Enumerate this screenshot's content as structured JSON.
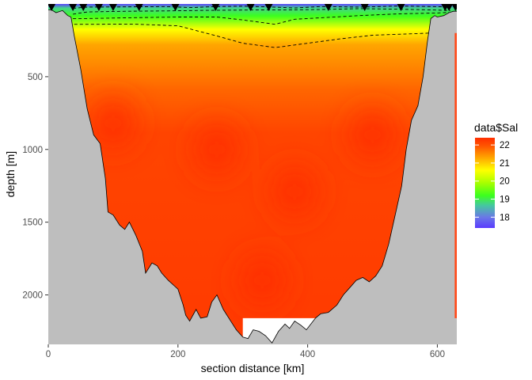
{
  "chart_data": {
    "type": "heatmap",
    "title": "",
    "xlabel": "section distance [km]",
    "ylabel": "depth [m]",
    "xlim": [
      0,
      630
    ],
    "ylim": [
      2340,
      0
    ],
    "y_reversed": true,
    "grid": false,
    "x_ticks": [
      0,
      200,
      400,
      600
    ],
    "y_ticks": [
      500,
      1000,
      1500,
      2000
    ],
    "legend": {
      "title": "data$Sal",
      "placement": "right",
      "ticks": [
        18,
        19,
        20,
        21,
        22
      ],
      "range": [
        17.4,
        22.4
      ]
    },
    "colors": {
      "panel_background": "#bebebe",
      "colorscale": [
        "#5a3cff",
        "#45c8a0",
        "#3cff1e",
        "#ffff00",
        "#ffa500",
        "#ff4500",
        "#ff2d00"
      ]
    },
    "station_x": [
      5,
      38,
      54,
      78,
      100,
      140,
      196,
      258,
      312,
      340,
      432,
      488,
      544,
      612,
      618,
      628
    ],
    "contours": {
      "line_style": "dashed",
      "levels": [
        19,
        20,
        21,
        21.8
      ],
      "lines": [
        {
          "x": [
            38,
            60,
            120,
            180,
            220,
            260,
            300,
            340,
            380,
            420,
            480,
            540,
            620
          ],
          "y": [
            30,
            22,
            20,
            18,
            25,
            18,
            15,
            20,
            28,
            18,
            22,
            14,
            20
          ]
        },
        {
          "x": [
            38,
            60,
            120,
            180,
            240,
            300,
            340,
            380,
            420,
            480,
            540,
            600,
            620
          ],
          "y": [
            70,
            55,
            50,
            48,
            44,
            42,
            40,
            40,
            38,
            32,
            36,
            42,
            45
          ]
        },
        {
          "x": [
            38,
            60,
            120,
            200,
            260,
            300,
            350,
            380,
            420,
            480,
            540,
            600,
            618
          ],
          "y": [
            100,
            100,
            95,
            90,
            90,
            110,
            140,
            105,
            95,
            80,
            68,
            62,
            58
          ]
        },
        {
          "x": [
            40,
            70,
            130,
            200,
            260,
            300,
            350,
            400,
            450,
            500,
            560,
            620
          ],
          "y": [
            140,
            140,
            138,
            150,
            220,
            270,
            300,
            270,
            240,
            215,
            205,
            195
          ]
        }
      ]
    },
    "salinity_hotspots": [
      {
        "x": 100,
        "depth": 820,
        "value": 22.4
      },
      {
        "x": 380,
        "depth": 1290,
        "value": 22.4
      },
      {
        "x": 260,
        "depth": 1000,
        "value": 22.1
      },
      {
        "x": 500,
        "depth": 900,
        "value": 22.0
      },
      {
        "x": 330,
        "depth": 1900,
        "value": 22.2
      }
    ],
    "bottom_topography": [
      {
        "x": -10,
        "depth": 40
      },
      {
        "x": 5,
        "depth": 40
      },
      {
        "x": 12,
        "depth": 60
      },
      {
        "x": 22,
        "depth": 45
      },
      {
        "x": 30,
        "depth": 80
      },
      {
        "x": 35,
        "depth": 90
      },
      {
        "x": 40,
        "depth": 220
      },
      {
        "x": 50,
        "depth": 450
      },
      {
        "x": 60,
        "depth": 720
      },
      {
        "x": 70,
        "depth": 900
      },
      {
        "x": 80,
        "depth": 960
      },
      {
        "x": 88,
        "depth": 1200
      },
      {
        "x": 92,
        "depth": 1430
      },
      {
        "x": 100,
        "depth": 1450
      },
      {
        "x": 110,
        "depth": 1520
      },
      {
        "x": 118,
        "depth": 1550
      },
      {
        "x": 125,
        "depth": 1500
      },
      {
        "x": 135,
        "depth": 1590
      },
      {
        "x": 145,
        "depth": 1700
      },
      {
        "x": 150,
        "depth": 1850
      },
      {
        "x": 160,
        "depth": 1780
      },
      {
        "x": 168,
        "depth": 1800
      },
      {
        "x": 175,
        "depth": 1850
      },
      {
        "x": 185,
        "depth": 1900
      },
      {
        "x": 195,
        "depth": 1940
      },
      {
        "x": 200,
        "depth": 1960
      },
      {
        "x": 208,
        "depth": 2070
      },
      {
        "x": 212,
        "depth": 2140
      },
      {
        "x": 218,
        "depth": 2180
      },
      {
        "x": 228,
        "depth": 2100
      },
      {
        "x": 235,
        "depth": 2160
      },
      {
        "x": 245,
        "depth": 2150
      },
      {
        "x": 252,
        "depth": 2050
      },
      {
        "x": 260,
        "depth": 2000
      },
      {
        "x": 270,
        "depth": 2100
      },
      {
        "x": 280,
        "depth": 2170
      },
      {
        "x": 290,
        "depth": 2240
      },
      {
        "x": 300,
        "depth": 2290
      },
      {
        "x": 308,
        "depth": 2300
      },
      {
        "x": 316,
        "depth": 2240
      },
      {
        "x": 325,
        "depth": 2250
      },
      {
        "x": 335,
        "depth": 2280
      },
      {
        "x": 345,
        "depth": 2330
      },
      {
        "x": 355,
        "depth": 2250
      },
      {
        "x": 365,
        "depth": 2200
      },
      {
        "x": 372,
        "depth": 2230
      },
      {
        "x": 380,
        "depth": 2180
      },
      {
        "x": 390,
        "depth": 2210
      },
      {
        "x": 398,
        "depth": 2240
      },
      {
        "x": 405,
        "depth": 2200
      },
      {
        "x": 412,
        "depth": 2160
      },
      {
        "x": 420,
        "depth": 2130
      },
      {
        "x": 432,
        "depth": 2120
      },
      {
        "x": 445,
        "depth": 2070
      },
      {
        "x": 455,
        "depth": 2000
      },
      {
        "x": 465,
        "depth": 1950
      },
      {
        "x": 475,
        "depth": 1900
      },
      {
        "x": 485,
        "depth": 1880
      },
      {
        "x": 495,
        "depth": 1910
      },
      {
        "x": 505,
        "depth": 1870
      },
      {
        "x": 515,
        "depth": 1800
      },
      {
        "x": 525,
        "depth": 1650
      },
      {
        "x": 535,
        "depth": 1450
      },
      {
        "x": 545,
        "depth": 1250
      },
      {
        "x": 552,
        "depth": 1000
      },
      {
        "x": 560,
        "depth": 800
      },
      {
        "x": 570,
        "depth": 700
      },
      {
        "x": 578,
        "depth": 500
      },
      {
        "x": 585,
        "depth": 250
      },
      {
        "x": 590,
        "depth": 100
      },
      {
        "x": 596,
        "depth": 80
      },
      {
        "x": 600,
        "depth": 90
      },
      {
        "x": 610,
        "depth": 80
      },
      {
        "x": 618,
        "depth": 60
      },
      {
        "x": 625,
        "depth": 50
      },
      {
        "x": 640,
        "depth": 50
      }
    ],
    "data_gap": {
      "x": [
        300,
        430
      ],
      "depth_top": 2160
    },
    "right_edge_strip": {
      "x": 628,
      "depth_top": 200,
      "depth_bottom": 2160
    }
  }
}
